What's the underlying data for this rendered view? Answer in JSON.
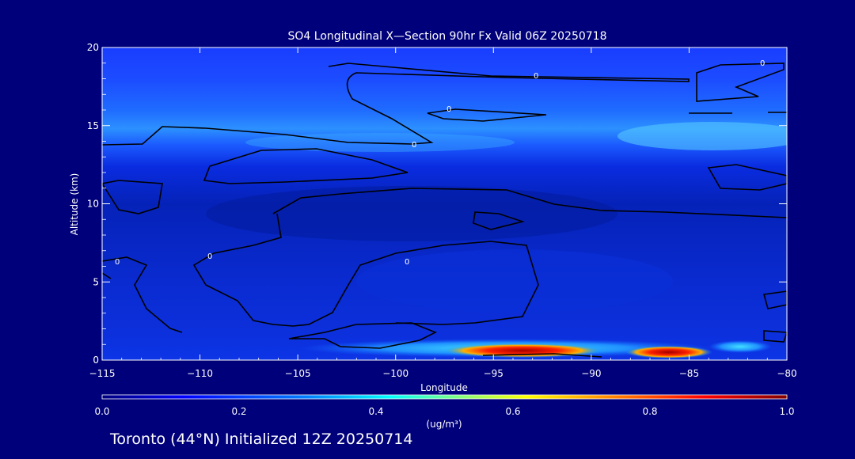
{
  "chart_data": {
    "type": "heatmap",
    "title": "SO4 Longitudinal X—Section 90hr  Fx Valid 06Z 20250718",
    "xlabel": "Longitude",
    "ylabel": "Altitude (km)",
    "xlim": [
      -115,
      -80
    ],
    "ylim": [
      0,
      20
    ],
    "x_ticks": [
      -115,
      -110,
      -105,
      -100,
      -95,
      -90,
      -85,
      -80
    ],
    "x_tick_labels": [
      "−115",
      "−110",
      "−105",
      "−100",
      "−95",
      "−90",
      "−85",
      "−80"
    ],
    "y_ticks": [
      0,
      5,
      10,
      15,
      20
    ],
    "y_tick_labels": [
      "0",
      "5",
      "10",
      "15",
      "20"
    ],
    "colorbar": {
      "min": 0.0,
      "max": 1.0,
      "ticks": [
        0.0,
        0.2,
        0.4,
        0.6,
        0.8,
        1.0
      ],
      "tick_labels": [
        "0.0",
        "0.2",
        "0.4",
        "0.6",
        "0.8",
        "1.0"
      ],
      "unit": "(ug/m³)",
      "colors": [
        "#00007f",
        "#0000ff",
        "#0080ff",
        "#00ffff",
        "#80ff80",
        "#ffff00",
        "#ff8000",
        "#ff0000",
        "#800000"
      ]
    },
    "contour_labels": [
      "0"
    ],
    "approx_field": {
      "levels": [
        {
          "alt_range": [
            0,
            1.0
          ],
          "value_range": [
            0.1,
            1.0
          ],
          "peak_lon": [
            -92,
            -85
          ],
          "note": "max near surface"
        },
        {
          "alt_range": [
            1.0,
            12.5
          ],
          "value_range": [
            0.05,
            0.2
          ]
        },
        {
          "alt_range": [
            12.5,
            16.5
          ],
          "value_range": [
            0.2,
            0.4
          ],
          "peak_lon": [
            -100,
            -80
          ]
        },
        {
          "alt_range": [
            16.5,
            20
          ],
          "value_range": [
            0.05,
            0.15
          ]
        }
      ]
    },
    "grid": false,
    "legend": "colorbar-bottom"
  },
  "footer": {
    "caption": "Toronto (44°N) Initialized 12Z 20250714"
  }
}
